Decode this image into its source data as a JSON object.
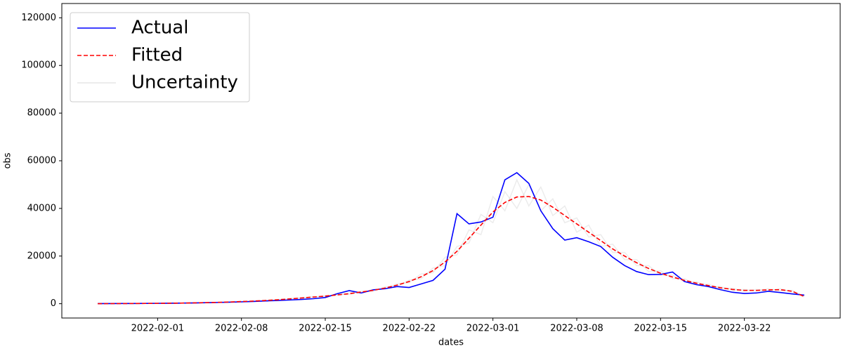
{
  "chart_data": {
    "type": "line",
    "xlabel": "dates",
    "ylabel": "obs",
    "legend": "upper left",
    "x": [
      "2022-01-27",
      "2022-01-28",
      "2022-01-29",
      "2022-01-30",
      "2022-01-31",
      "2022-02-01",
      "2022-02-02",
      "2022-02-03",
      "2022-02-04",
      "2022-02-05",
      "2022-02-06",
      "2022-02-07",
      "2022-02-08",
      "2022-02-09",
      "2022-02-10",
      "2022-02-11",
      "2022-02-12",
      "2022-02-13",
      "2022-02-14",
      "2022-02-15",
      "2022-02-16",
      "2022-02-17",
      "2022-02-18",
      "2022-02-19",
      "2022-02-20",
      "2022-02-21",
      "2022-02-22",
      "2022-02-23",
      "2022-02-24",
      "2022-02-25",
      "2022-02-26",
      "2022-02-27",
      "2022-02-28",
      "2022-03-01",
      "2022-03-02",
      "2022-03-03",
      "2022-03-04",
      "2022-03-05",
      "2022-03-06",
      "2022-03-07",
      "2022-03-08",
      "2022-03-09",
      "2022-03-10",
      "2022-03-11",
      "2022-03-12",
      "2022-03-13",
      "2022-03-14",
      "2022-03-15",
      "2022-03-16",
      "2022-03-17",
      "2022-03-18",
      "2022-03-19",
      "2022-03-20",
      "2022-03-21",
      "2022-03-22",
      "2022-03-23",
      "2022-03-24",
      "2022-03-25",
      "2022-03-26",
      "2022-03-27"
    ],
    "series": [
      {
        "name": "Actual",
        "color": "#0000ff",
        "style": "solid",
        "values": [
          50,
          60,
          80,
          100,
          120,
          150,
          200,
          260,
          330,
          420,
          520,
          640,
          780,
          950,
          1150,
          1350,
          1550,
          1800,
          2100,
          2600,
          4200,
          5500,
          4500,
          5800,
          6300,
          7200,
          6800,
          8300,
          9800,
          14500,
          37800,
          33500,
          34300,
          36300,
          52000,
          55000,
          50500,
          39000,
          31500,
          26700,
          27700,
          26000,
          24000,
          19500,
          16000,
          13500,
          12200,
          12300,
          13300,
          9300,
          8000,
          7200,
          5900,
          4800,
          4300,
          4500,
          5200,
          4700,
          4100,
          3600
        ]
      },
      {
        "name": "Fitted",
        "color": "#ff0000",
        "style": "dashed",
        "values": [
          30,
          40,
          60,
          80,
          110,
          150,
          200,
          260,
          340,
          440,
          560,
          720,
          900,
          1100,
          1350,
          1650,
          2000,
          2400,
          2800,
          3200,
          3700,
          4200,
          4900,
          5600,
          6600,
          7800,
          9300,
          11300,
          13900,
          17500,
          22000,
          27500,
          33000,
          38500,
          42500,
          44800,
          45000,
          43500,
          40500,
          37000,
          33500,
          30000,
          26500,
          23000,
          20000,
          17200,
          14800,
          12800,
          11200,
          9800,
          8600,
          7600,
          6700,
          6000,
          5600,
          5600,
          5800,
          5900,
          5200,
          3000
        ]
      },
      {
        "name": "Uncertainty",
        "color": "#808080",
        "style": "faint",
        "samples": [
          [
            30,
            50,
            60,
            90,
            100,
            160,
            190,
            280,
            320,
            460,
            540,
            760,
            860,
            1200,
            1300,
            1700,
            1900,
            2600,
            2700,
            3400,
            3500,
            4600,
            4600,
            6000,
            6200,
            8400,
            8800,
            12500,
            13000,
            19500,
            20500,
            31000,
            29000,
            45000,
            39000,
            52000,
            41000,
            49000,
            37000,
            41000,
            30000,
            33000,
            24000,
            25000,
            18500,
            18500,
            13500,
            13800,
            10500,
            10500,
            8000,
            8200,
            6300,
            6500,
            5200,
            6000,
            5400,
            6300,
            4900,
            3300
          ],
          [
            40,
            30,
            70,
            70,
            120,
            140,
            220,
            240,
            360,
            420,
            600,
            680,
            950,
            1000,
            1450,
            1550,
            2150,
            2250,
            3000,
            3000,
            4000,
            3900,
            5200,
            5200,
            7100,
            7200,
            9900,
            10400,
            15000,
            16000,
            24000,
            25500,
            37500,
            34000,
            47000,
            40000,
            50000,
            39000,
            44000,
            34000,
            36000,
            28000,
            29000,
            21500,
            21500,
            16000,
            16000,
            12000,
            12000,
            9200,
            9200,
            7000,
            7200,
            5600,
            6000,
            5300,
            6300,
            5500,
            5600,
            2800
          ]
        ]
      }
    ],
    "xlim": [
      "2022-01-24",
      "2022-03-30"
    ],
    "xticks": [
      "2022-02-01",
      "2022-02-08",
      "2022-02-15",
      "2022-02-22",
      "2022-03-01",
      "2022-03-08",
      "2022-03-15",
      "2022-03-22"
    ],
    "ylim": [
      -6000,
      126000
    ],
    "yticks": [
      0,
      20000,
      40000,
      60000,
      80000,
      100000,
      120000
    ]
  }
}
